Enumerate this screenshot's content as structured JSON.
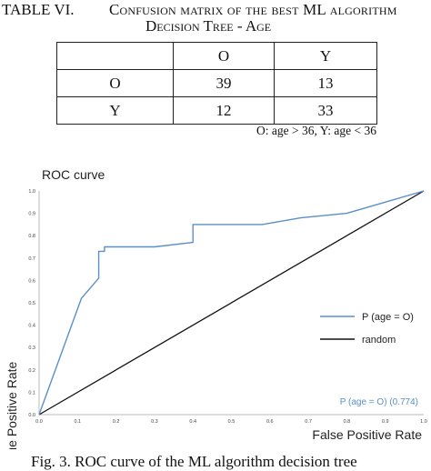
{
  "table": {
    "label": "TABLE VI.",
    "title_line1": "Confusion matrix of the best ML algorithm",
    "title_line2": "Decision Tree - Age",
    "header": [
      "",
      "O",
      "Y"
    ],
    "rows": [
      [
        "O",
        "39",
        "13"
      ],
      [
        "Y",
        "12",
        "33"
      ]
    ],
    "note": "O: age > 36, Y: age < 36"
  },
  "chart_data": {
    "type": "line",
    "title": "ROC curve",
    "xlabel": "False Positive Rate",
    "ylabel": "True Positive Rate",
    "xlim": [
      0,
      1
    ],
    "ylim": [
      0,
      1
    ],
    "xticks": [
      "0.0",
      "0.1",
      "0.2",
      "0.3",
      "0.4",
      "0.5",
      "0.6",
      "0.7",
      "0.8",
      "0.9",
      "1.0"
    ],
    "yticks": [
      "0.0",
      "0.1",
      "0.2",
      "0.3",
      "0.4",
      "0.5",
      "0.6",
      "0.7",
      "0.8",
      "0.9",
      "1.0"
    ],
    "grid": false,
    "legend_position": "center-right",
    "series": [
      {
        "name": "P (age = O)",
        "color": "#5b8fc7",
        "x": [
          0.0,
          0.11,
          0.14,
          0.155,
          0.155,
          0.17,
          0.17,
          0.3,
          0.4,
          0.4,
          0.58,
          0.68,
          0.8,
          0.9,
          1.0
        ],
        "y": [
          0.0,
          0.52,
          0.58,
          0.61,
          0.73,
          0.73,
          0.75,
          0.75,
          0.77,
          0.85,
          0.85,
          0.88,
          0.9,
          0.95,
          1.0
        ]
      },
      {
        "name": "random",
        "color": "#111111",
        "x": [
          0.0,
          1.0
        ],
        "y": [
          0.0,
          1.0
        ]
      }
    ],
    "annotation": "P (age = O) (0.774)"
  },
  "figure": {
    "caption": "Fig. 3.      ROC curve of the ML algorithm decision tree"
  }
}
